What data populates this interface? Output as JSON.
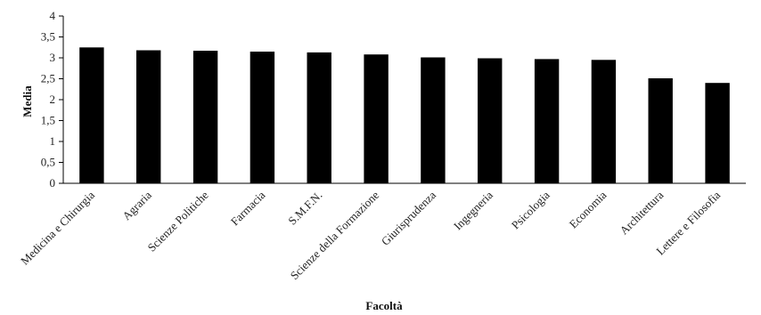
{
  "chart_data": {
    "type": "bar",
    "title": "",
    "xlabel": "Facoltà",
    "ylabel": "Media",
    "ylim": [
      0,
      4
    ],
    "yticks": [
      0,
      0.5,
      1,
      1.5,
      2,
      2.5,
      3,
      3.5,
      4
    ],
    "ytick_labels": [
      "0",
      "0,5",
      "1",
      "1,5",
      "2",
      "2,5",
      "3",
      "3,5",
      "4"
    ],
    "grid": false,
    "legend": "none",
    "bar_color": "#000000",
    "categories": [
      "Medicina e Chirurgia",
      "Agraria",
      "Scienze Politiche",
      "Farmacia",
      "S.M.F.N.",
      "Scienze della Formazione",
      "Giurisprudenza",
      "Ingegneria",
      "Psicologia",
      "Economia",
      "Architettura",
      "Lettere e Filosofia"
    ],
    "values": [
      3.25,
      3.18,
      3.17,
      3.15,
      3.13,
      3.08,
      3.01,
      2.99,
      2.97,
      2.95,
      2.51,
      2.4
    ]
  }
}
